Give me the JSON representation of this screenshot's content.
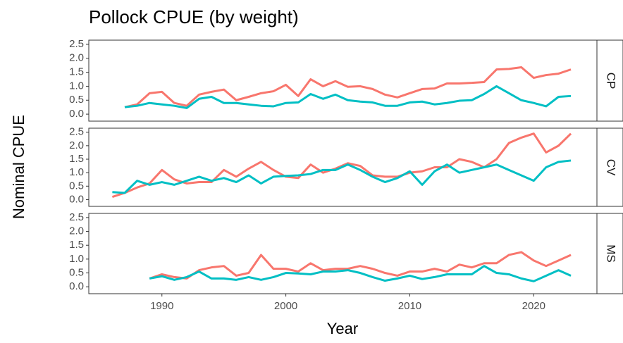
{
  "chart_data": {
    "type": "line",
    "title": "Pollock CPUE (by weight)",
    "xlabel": "Year",
    "ylabel": "Nominal CPUE",
    "xlim": [
      1984.1,
      2025.1
    ],
    "xticks": [
      1990,
      2000,
      2010,
      2020
    ],
    "panels": [
      {
        "label": "CP",
        "ylim": [
          -0.25,
          2.65
        ],
        "yticks": [
          {
            "value": 0,
            "label": "0.0"
          },
          0.5,
          {
            "value": 1,
            "label": "1.0"
          },
          1.5,
          {
            "value": 2,
            "label": "2.0"
          },
          2.5
        ],
        "x": [
          1987,
          1988,
          1989,
          1990,
          1991,
          1992,
          1993,
          1994,
          1995,
          1996,
          1997,
          1998,
          1999,
          2000,
          2001,
          2002,
          2003,
          2004,
          2005,
          2006,
          2007,
          2008,
          2009,
          2010,
          2011,
          2012,
          2013,
          2014,
          2015,
          2016,
          2017,
          2018,
          2019,
          2020,
          2021,
          2022,
          2023
        ],
        "series": [
          {
            "color": "#F8766D",
            "values": [
              0.25,
              0.35,
              0.75,
              0.8,
              0.4,
              0.3,
              0.7,
              0.8,
              0.88,
              0.5,
              0.62,
              0.75,
              0.82,
              1.05,
              0.65,
              1.25,
              1.0,
              1.18,
              0.98,
              1.0,
              0.9,
              0.7,
              0.6,
              0.75,
              0.9,
              0.92,
              1.1,
              1.1,
              1.12,
              1.15,
              1.6,
              1.62,
              1.68,
              1.3,
              1.4,
              1.45,
              1.6
            ]
          },
          {
            "color": "#00BFC4",
            "values": [
              0.25,
              0.3,
              0.4,
              0.35,
              0.3,
              0.22,
              0.55,
              0.62,
              0.4,
              0.4,
              0.35,
              0.3,
              0.28,
              0.4,
              0.42,
              0.72,
              0.55,
              0.7,
              0.5,
              0.45,
              0.42,
              0.3,
              0.3,
              0.42,
              0.45,
              0.35,
              0.4,
              0.48,
              0.5,
              0.72,
              1.0,
              0.75,
              0.5,
              0.4,
              0.28,
              0.62,
              0.65
            ]
          }
        ]
      },
      {
        "label": "CV",
        "ylim": [
          -0.25,
          2.65
        ],
        "yticks": [
          {
            "value": 0,
            "label": "0.0"
          },
          0.5,
          {
            "value": 1,
            "label": "1.0"
          },
          1.5,
          {
            "value": 2,
            "label": "2.0"
          },
          2.5
        ],
        "x": [
          1986,
          1987,
          1988,
          1989,
          1990,
          1991,
          1992,
          1993,
          1994,
          1995,
          1996,
          1997,
          1998,
          1999,
          2000,
          2001,
          2002,
          2003,
          2004,
          2005,
          2006,
          2007,
          2008,
          2009,
          2010,
          2011,
          2012,
          2013,
          2014,
          2015,
          2016,
          2017,
          2018,
          2019,
          2020,
          2021,
          2022,
          2023
        ],
        "series": [
          {
            "color": "#F8766D",
            "values": [
              0.1,
              0.25,
              0.45,
              0.6,
              1.1,
              0.75,
              0.6,
              0.65,
              0.65,
              1.1,
              0.85,
              1.15,
              1.4,
              1.1,
              0.85,
              0.8,
              1.3,
              1.0,
              1.15,
              1.35,
              1.25,
              0.9,
              0.85,
              0.85,
              1.0,
              1.05,
              1.2,
              1.2,
              1.5,
              1.4,
              1.2,
              1.5,
              2.1,
              2.3,
              2.45,
              1.75,
              2.0,
              2.45
            ]
          },
          {
            "color": "#00BFC4",
            "values": [
              0.28,
              0.25,
              0.7,
              0.55,
              0.65,
              0.55,
              0.7,
              0.85,
              0.7,
              0.8,
              0.65,
              0.9,
              0.6,
              0.85,
              0.88,
              0.9,
              0.95,
              1.1,
              1.1,
              1.3,
              1.1,
              0.85,
              0.65,
              0.8,
              1.05,
              0.55,
              1.05,
              1.3,
              1.0,
              1.1,
              1.2,
              1.3,
              1.1,
              0.9,
              0.7,
              1.2,
              1.4,
              1.45
            ]
          }
        ]
      },
      {
        "label": "MS",
        "ylim": [
          -0.25,
          2.65
        ],
        "yticks": [
          {
            "value": 0,
            "label": "0.0"
          },
          0.5,
          {
            "value": 1,
            "label": "1.0"
          },
          1.5,
          {
            "value": 2,
            "label": "2.0"
          },
          2.5
        ],
        "x": [
          1989,
          1990,
          1991,
          1992,
          1993,
          1994,
          1995,
          1996,
          1997,
          1998,
          1999,
          2000,
          2001,
          2002,
          2003,
          2004,
          2005,
          2006,
          2007,
          2008,
          2009,
          2010,
          2011,
          2012,
          2013,
          2014,
          2015,
          2016,
          2017,
          2018,
          2019,
          2020,
          2021,
          2022,
          2023
        ],
        "series": [
          {
            "color": "#F8766D",
            "values": [
              0.3,
              0.45,
              0.35,
              0.3,
              0.6,
              0.7,
              0.75,
              0.4,
              0.5,
              1.15,
              0.65,
              0.65,
              0.55,
              0.85,
              0.6,
              0.65,
              0.65,
              0.75,
              0.65,
              0.5,
              0.4,
              0.55,
              0.55,
              0.65,
              0.55,
              0.8,
              0.7,
              0.85,
              0.85,
              1.15,
              1.25,
              0.95,
              0.75,
              0.95,
              1.15
            ]
          },
          {
            "color": "#00BFC4",
            "values": [
              0.3,
              0.38,
              0.25,
              0.35,
              0.55,
              0.3,
              0.3,
              0.25,
              0.35,
              0.25,
              0.35,
              0.5,
              0.48,
              0.45,
              0.55,
              0.55,
              0.6,
              0.5,
              0.35,
              0.22,
              0.3,
              0.4,
              0.28,
              0.35,
              0.45,
              0.45,
              0.45,
              0.75,
              0.5,
              0.45,
              0.3,
              0.2,
              0.4,
              0.6,
              0.4
            ]
          }
        ]
      }
    ]
  }
}
